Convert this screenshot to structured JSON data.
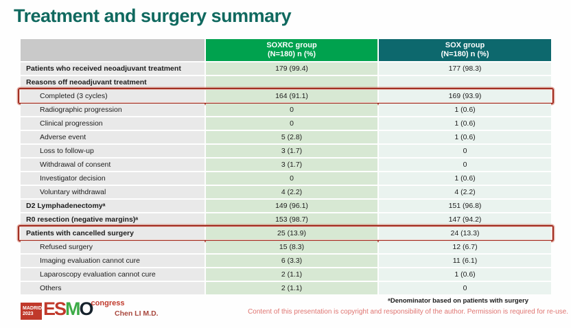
{
  "slide": {
    "title": "Treatment and surgery summary",
    "presenter": "Chen LI M.D.",
    "footnote": "ᵃDenominator based on patients with surgery",
    "copyright": "Content of this presentation is copyright and responsibility of the author. Permission is required for re-use."
  },
  "logo": {
    "madrid": "MADRID",
    "year": "2023",
    "letters_es": "ES",
    "letter_m": "M",
    "letter_o": "O",
    "congress": "congress"
  },
  "table": {
    "header": {
      "label": "",
      "soxrc_line1": "SOXRC group",
      "soxrc_line2": "(N=180)  n (%)",
      "sox_line1": "SOX group",
      "sox_line2": "(N=180)  n (%)"
    },
    "rows": [
      {
        "label": "Patients who received neoadjuvant treatment",
        "soxrc": "179 (99.4)",
        "sox": "177 (98.3)",
        "bold": true,
        "indent": false,
        "highlighted": false
      },
      {
        "label": "Reasons off neoadjuvant treatment",
        "soxrc": "",
        "sox": "",
        "bold": true,
        "indent": false,
        "highlighted": false
      },
      {
        "label": "Completed (3 cycles)",
        "soxrc": "164 (91.1)",
        "sox": "169 (93.9)",
        "bold": false,
        "indent": true,
        "highlighted": true
      },
      {
        "label": "Radiographic progression",
        "soxrc": "0",
        "sox": "1 (0.6)",
        "bold": false,
        "indent": true,
        "highlighted": false
      },
      {
        "label": "Clinical progression",
        "soxrc": "0",
        "sox": "1 (0.6)",
        "bold": false,
        "indent": true,
        "highlighted": false
      },
      {
        "label": "Adverse event",
        "soxrc": "5 (2.8)",
        "sox": "1 (0.6)",
        "bold": false,
        "indent": true,
        "highlighted": false
      },
      {
        "label": "Loss to follow-up",
        "soxrc": "3 (1.7)",
        "sox": "0",
        "bold": false,
        "indent": true,
        "highlighted": false
      },
      {
        "label": "Withdrawal of consent",
        "soxrc": "3 (1.7)",
        "sox": "0",
        "bold": false,
        "indent": true,
        "highlighted": false
      },
      {
        "label": "Investigator decision",
        "soxrc": "0",
        "sox": "1 (0.6)",
        "bold": false,
        "indent": true,
        "highlighted": false
      },
      {
        "label": "Voluntary withdrawal",
        "soxrc": "4 (2.2)",
        "sox": "4 (2.2)",
        "bold": false,
        "indent": true,
        "highlighted": false
      },
      {
        "label": "D2 Lymphadenectomyᵃ",
        "soxrc": "149 (96.1)",
        "sox": "151 (96.8)",
        "bold": true,
        "indent": false,
        "highlighted": false
      },
      {
        "label": "R0 resection (negative margins)ᵃ",
        "soxrc": "153 (98.7)",
        "sox": "147 (94.2)",
        "bold": true,
        "indent": false,
        "highlighted": false
      },
      {
        "label": "Patients with cancelled surgery",
        "soxrc": "25 (13.9)",
        "sox": "24 (13.3)",
        "bold": true,
        "indent": false,
        "highlighted": true
      },
      {
        "label": "Refused surgery",
        "soxrc": "15 (8.3)",
        "sox": "12 (6.7)",
        "bold": false,
        "indent": true,
        "highlighted": false
      },
      {
        "label": "Imaging evaluation cannot cure",
        "soxrc": "6 (3.3)",
        "sox": "11 (6.1)",
        "bold": false,
        "indent": true,
        "highlighted": false
      },
      {
        "label": "Laparoscopy evaluation cannot cure",
        "soxrc": "2 (1.1)",
        "sox": "1 (0.6)",
        "bold": false,
        "indent": true,
        "highlighted": false
      },
      {
        "label": "Others",
        "soxrc": "2 (1.1)",
        "sox": "0",
        "bold": false,
        "indent": true,
        "highlighted": false
      }
    ]
  },
  "colors": {
    "title_color": "#10695f",
    "header_green": "#00a24e",
    "header_teal": "#0d686d",
    "header_gray": "#c9c9c9",
    "cell_label": "#e9e9e9",
    "cell_soxrc": "#d7e8d3",
    "cell_sox": "#eaf3ef",
    "highlight": "#a22f23",
    "logo_red": "#c0392b",
    "logo_green": "#3dab47",
    "logo_dark": "#16222c",
    "presenter": "#a8473d",
    "copyright": "#df7470"
  }
}
